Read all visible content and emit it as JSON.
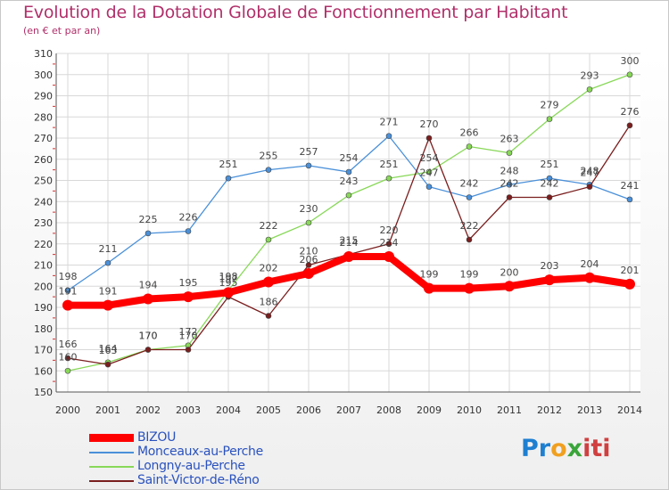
{
  "header": {
    "title": "Evolution de la Dotation Globale de Fonctionnement par Habitant",
    "subtitle": "(en € et par an)"
  },
  "chart_data": {
    "type": "line",
    "title": "Evolution de la Dotation Globale de Fonctionnement par Habitant",
    "subtitle": "(en € et par an)",
    "xlabel": "",
    "ylabel": "",
    "ylim": [
      150,
      310
    ],
    "ytick_step": 10,
    "grid": true,
    "categories": [
      "2000",
      "2001",
      "2002",
      "2003",
      "2004",
      "2005",
      "2006",
      "2007",
      "2008",
      "2009",
      "2010",
      "2011",
      "2012",
      "2013",
      "2014"
    ],
    "series": [
      {
        "name": "BIZOU",
        "color": "#ff0000",
        "values": [
          191,
          191,
          194,
          195,
          197,
          202,
          206,
          214,
          214,
          199,
          199,
          200,
          203,
          204,
          201
        ]
      },
      {
        "name": "Monceaux-au-Perche",
        "color": "#4a90d9",
        "values": [
          198,
          211,
          225,
          226,
          251,
          255,
          257,
          254,
          271,
          247,
          242,
          248,
          251,
          248,
          241
        ]
      },
      {
        "name": "Longny-au-Perche",
        "color": "#88d858",
        "values": [
          160,
          164,
          170,
          172,
          198,
          222,
          230,
          243,
          251,
          254,
          266,
          263,
          279,
          293,
          300
        ]
      },
      {
        "name": "Saint-Victor-de-Réno",
        "color": "#7a1e1e",
        "values": [
          166,
          163,
          170,
          170,
          195,
          186,
          210,
          215,
          220,
          270,
          222,
          242,
          242,
          247,
          276
        ]
      }
    ]
  },
  "legend": {
    "items": [
      {
        "label": "BIZOU",
        "color": "#ff0000"
      },
      {
        "label": "Monceaux-au-Perche",
        "color": "#4a90d9"
      },
      {
        "label": "Longny-au-Perche",
        "color": "#88d858"
      },
      {
        "label": "Saint-Victor-de-Réno",
        "color": "#7a1e1e"
      }
    ]
  },
  "logo": {
    "part1": "Pr",
    "part2": "o",
    "part3": "x",
    "part4": "iti"
  }
}
